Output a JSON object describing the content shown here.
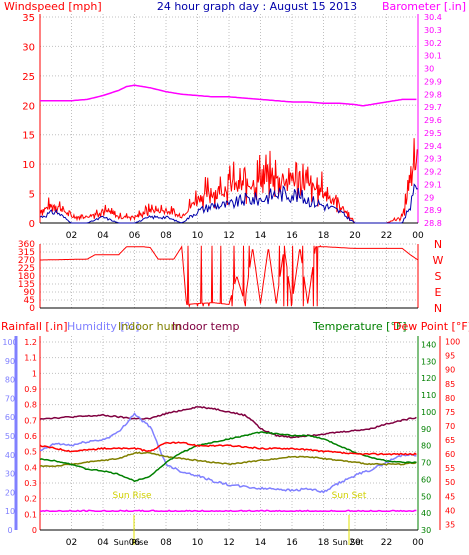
{
  "header": {
    "windspeed_label": "Windspeed [mph]",
    "title": "24 hour graph day : August 15 2013",
    "barometer_label": "Barometer [.in]"
  },
  "colors": {
    "wind": "#ff0000",
    "gust_avg": "#0000aa",
    "barometer": "#ff00ff",
    "direction": "#ff0000",
    "rain": "#ff0000",
    "humidity": "#8080ff",
    "indoor_hum": "#808000",
    "indoor_temp": "#800040",
    "temperature": "#008000",
    "dew_point": "#ff0000",
    "sun": "#e0e000",
    "rain_line": "#ff00ff",
    "grid": "#c0c0c0"
  },
  "chart_data": [
    {
      "type": "line",
      "name": "wind-barometer",
      "x_ticks": [
        "02",
        "04",
        "06",
        "08",
        "10",
        "12",
        "14",
        "16",
        "18",
        "20",
        "22",
        "00"
      ],
      "left_axis": {
        "label": "Windspeed [mph]",
        "ticks": [
          0,
          5,
          10,
          15,
          20,
          25,
          30,
          35
        ],
        "range": [
          0,
          35
        ]
      },
      "right_axis": {
        "label": "Barometer [.in]",
        "ticks": [
          "28.8",
          "28.9",
          "29",
          "29.1",
          "29.2",
          "29.3",
          "29.4",
          "29.5",
          "29.6",
          "29.7",
          "29.8",
          "29.9",
          "30",
          "30.1",
          "30.2",
          "30.3",
          "30.4"
        ],
        "range": [
          28.8,
          30.4
        ]
      },
      "series": [
        {
          "key": "barometer",
          "axis": "right",
          "x": [
            0,
            1,
            2,
            3,
            4,
            5,
            5.5,
            6,
            6.5,
            7,
            8,
            9,
            10,
            11,
            12,
            13,
            14,
            15,
            16,
            17,
            18,
            19,
            20,
            20.5,
            21,
            22,
            23,
            24
          ],
          "values": [
            29.75,
            29.75,
            29.75,
            29.76,
            29.79,
            29.83,
            29.86,
            29.87,
            29.86,
            29.85,
            29.82,
            29.8,
            29.79,
            29.78,
            29.78,
            29.77,
            29.76,
            29.75,
            29.74,
            29.74,
            29.73,
            29.73,
            29.72,
            29.71,
            29.72,
            29.74,
            29.76,
            29.76
          ]
        },
        {
          "key": "wind",
          "axis": "left",
          "x": [
            0,
            1,
            2,
            3,
            4,
            5,
            6,
            7,
            8,
            9,
            10,
            11,
            12,
            13,
            14,
            15,
            16,
            17,
            18,
            19,
            20,
            21,
            22,
            23,
            23.5,
            24
          ],
          "values": [
            2,
            3,
            1,
            1,
            2,
            1,
            1,
            2,
            2,
            1,
            4,
            5,
            6,
            6,
            7,
            7,
            7,
            6,
            5,
            3,
            0,
            0,
            0,
            1,
            6,
            11
          ]
        },
        {
          "key": "gust_avg",
          "axis": "left",
          "x": [
            0,
            1,
            2,
            3,
            4,
            5,
            6,
            7,
            8,
            9,
            10,
            11,
            12,
            13,
            14,
            15,
            16,
            17,
            18,
            19,
            20,
            21,
            22,
            23,
            23.5,
            24
          ],
          "values": [
            1,
            2,
            0,
            0,
            1,
            0,
            0,
            1,
            1,
            0,
            2,
            3,
            3,
            4,
            4,
            5,
            5,
            4,
            3,
            2,
            0,
            0,
            0,
            0,
            3,
            7
          ]
        }
      ]
    },
    {
      "type": "line",
      "name": "wind-direction",
      "x_ticks": [
        "02",
        "04",
        "06",
        "08",
        "10",
        "12",
        "14",
        "16",
        "18",
        "20",
        "22",
        "00"
      ],
      "left_axis": {
        "ticks": [
          0,
          45,
          90,
          135,
          180,
          225,
          270,
          315,
          360
        ],
        "range": [
          0,
          360
        ]
      },
      "right_axis": {
        "ticks": [
          "N",
          "W",
          "S",
          "E",
          "N"
        ]
      },
      "series": [
        {
          "key": "direction",
          "x": [
            0,
            3,
            3.5,
            5,
            5.5,
            6,
            6.5,
            7,
            7.5,
            8.5,
            9,
            9.3,
            10,
            11,
            12,
            12.5,
            13,
            13.5,
            14,
            14.5,
            15,
            15.5,
            16,
            16.5,
            17,
            17.5,
            18,
            19,
            20,
            21,
            22,
            23,
            23.5,
            24
          ],
          "values": [
            270,
            275,
            300,
            300,
            345,
            345,
            345,
            340,
            275,
            275,
            345,
            20,
            25,
            30,
            20,
            180,
            30,
            340,
            25,
            340,
            25,
            340,
            30,
            340,
            25,
            345,
            345,
            340,
            335,
            335,
            335,
            335,
            300,
            270
          ]
        }
      ]
    },
    {
      "type": "line",
      "name": "temperature-humidity",
      "legend": [
        "Rainfall [.in]",
        "Humidity [%]",
        "Indoor hum",
        "Indoor temp",
        "Temperature [°F]",
        "Dew Point [°F]"
      ],
      "x_ticks": [
        "02",
        "04",
        "06",
        "08",
        "10",
        "12",
        "14",
        "16",
        "18",
        "20",
        "22",
        "00"
      ],
      "rain_axis": {
        "ticks": [
          "0",
          "0.1",
          "0.2",
          "0.3",
          "0.4",
          "0.5",
          "0.6",
          "0.7",
          "0.8",
          "0.9",
          "1",
          "1.1",
          "1.2"
        ],
        "range": [
          0,
          1.2
        ]
      },
      "humidity_axis": {
        "ticks": [
          0,
          10,
          20,
          30,
          40,
          50,
          60,
          70,
          80,
          90,
          100
        ],
        "range": [
          0,
          100
        ]
      },
      "temperature_axis": {
        "ticks": [
          30,
          40,
          50,
          60,
          70,
          80,
          90,
          100,
          110,
          120,
          130,
          140
        ],
        "range": [
          30,
          145
        ]
      },
      "dewpoint_axis": {
        "ticks": [
          35,
          40,
          45,
          50,
          55,
          60,
          65,
          70,
          75,
          80,
          85,
          90,
          95,
          100
        ],
        "range": [
          33,
          102
        ]
      },
      "annotations": [
        "Sun Rise",
        "Sun Set",
        "Sun Rise",
        "Sun Set"
      ],
      "series": [
        {
          "key": "indoor_temp",
          "axis": "temperature",
          "x": [
            0,
            2,
            4,
            6,
            7,
            8,
            9,
            10,
            11,
            12,
            13,
            13.5,
            14,
            15,
            16,
            17,
            18,
            19,
            20,
            21,
            22,
            23,
            24
          ],
          "values": [
            96,
            97,
            98,
            96,
            96,
            99,
            101,
            103,
            102,
            100,
            98,
            95,
            90,
            86,
            85,
            86,
            87,
            88,
            89,
            90,
            93,
            95,
            97
          ]
        },
        {
          "key": "humidity",
          "axis": "humidity",
          "x": [
            0,
            1,
            2,
            3,
            4,
            5,
            6,
            6.5,
            7,
            7.5,
            8,
            9,
            10,
            11,
            12,
            13,
            14,
            15,
            16,
            17,
            18,
            19,
            20,
            21,
            22,
            23,
            24
          ],
          "values": [
            42,
            46,
            45,
            47,
            48,
            52,
            62,
            58,
            55,
            45,
            35,
            31,
            29,
            26,
            24,
            23,
            22,
            22,
            21,
            22,
            20,
            25,
            29,
            32,
            36,
            40,
            40
          ]
        },
        {
          "key": "indoor_hum",
          "axis": "humidity",
          "x": [
            0,
            1,
            2,
            3,
            4,
            5,
            6,
            7,
            8,
            9,
            10,
            11,
            12,
            13,
            14,
            15,
            16,
            17,
            18,
            19,
            20,
            21,
            22,
            23,
            24
          ],
          "values": [
            34,
            34,
            35,
            36,
            37,
            38,
            41,
            41,
            39,
            38,
            37,
            36,
            35,
            36,
            37,
            38,
            39,
            39,
            38,
            37,
            36,
            35,
            35,
            35,
            36
          ]
        },
        {
          "key": "temperature",
          "axis": "temperature",
          "x": [
            0,
            1,
            2,
            3,
            4,
            5,
            6,
            7,
            8,
            9,
            10,
            11,
            12,
            13,
            14,
            15,
            16,
            17,
            18,
            19,
            20,
            21,
            22,
            23,
            24
          ],
          "values": [
            72,
            71,
            69,
            66,
            65,
            63,
            59,
            62,
            70,
            76,
            80,
            82,
            84,
            86,
            88,
            87,
            86,
            86,
            84,
            80,
            76,
            73,
            71,
            70,
            70
          ]
        },
        {
          "key": "dew_point",
          "axis": "dewpoint",
          "x": [
            0,
            2,
            4,
            6,
            7,
            8,
            9,
            10,
            12,
            14,
            16,
            18,
            20,
            22,
            24
          ],
          "values": [
            63,
            61,
            62,
            62,
            61,
            64,
            64,
            63,
            63,
            62,
            62,
            61,
            60,
            60,
            60
          ]
        },
        {
          "key": "rain_line",
          "axis": "rain",
          "x": [
            0,
            24
          ],
          "values": [
            0,
            0
          ]
        }
      ]
    }
  ]
}
